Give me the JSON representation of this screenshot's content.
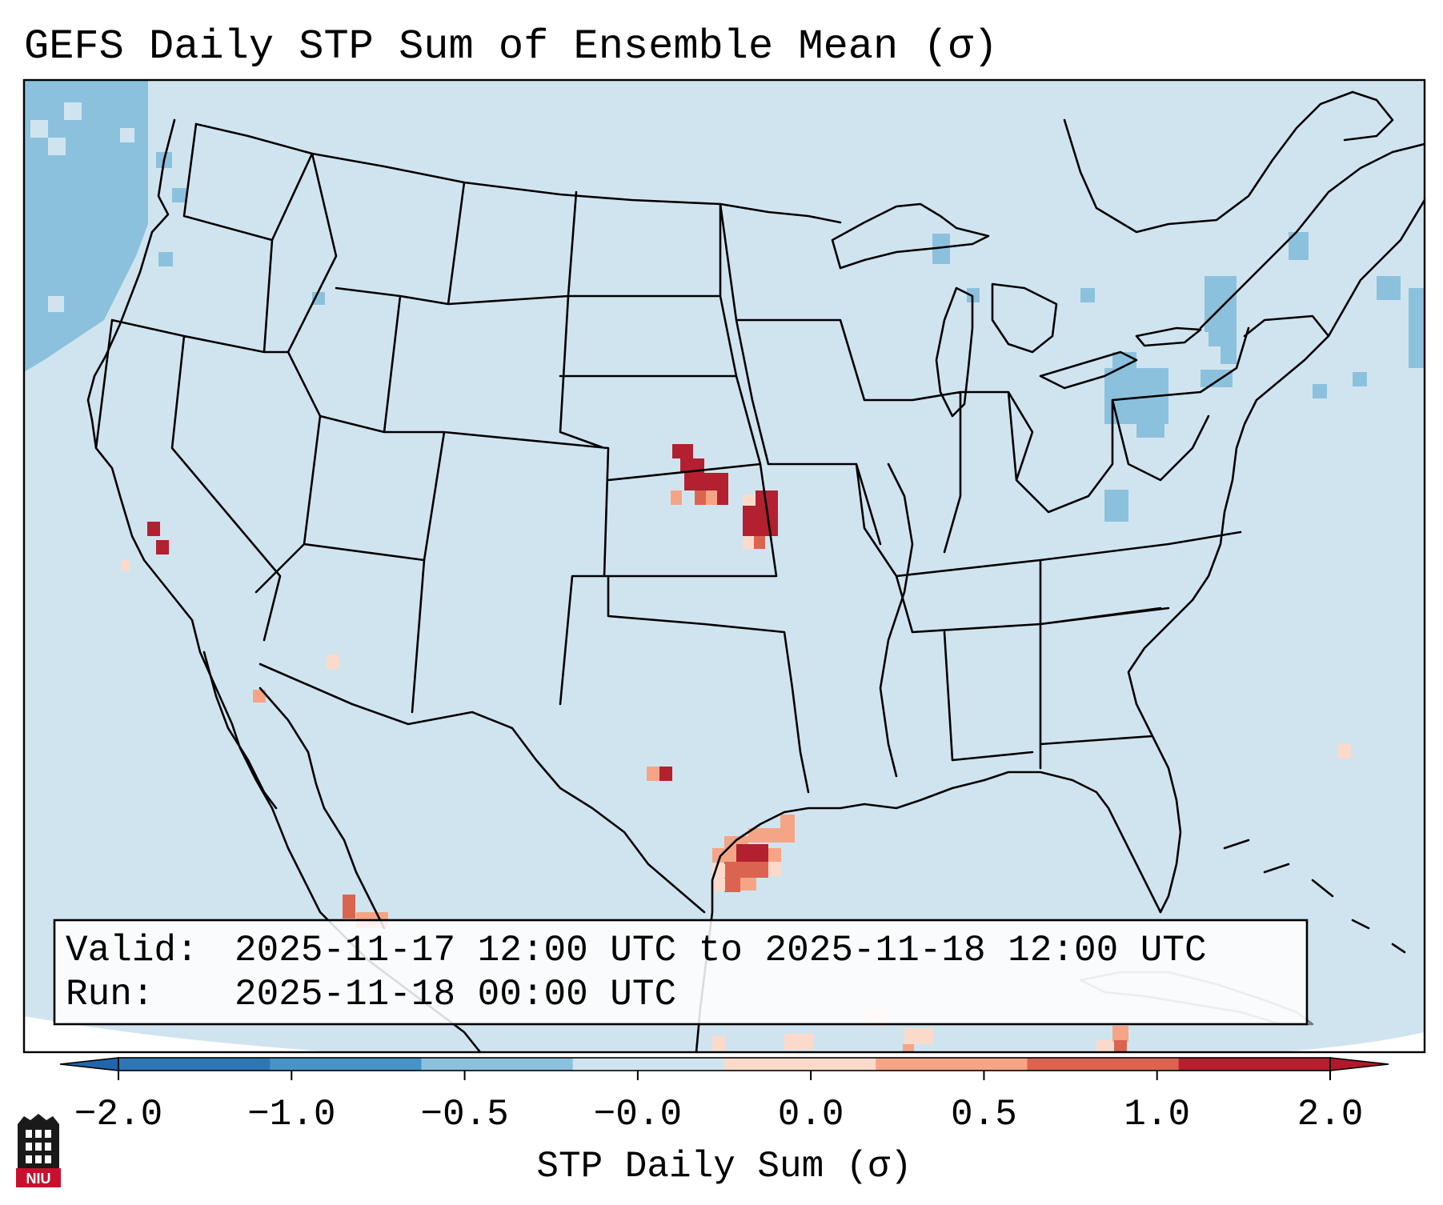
{
  "title": "GEFS Daily STP Sum of Ensemble Mean (σ)",
  "info_box": {
    "valid_label": "Valid:",
    "valid_value": "2025-11-17 12:00 UTC to 2025-11-18 12:00 UTC",
    "run_label": "Run:",
    "run_value": "2025-11-18 00:00 UTC"
  },
  "colorbar": {
    "label": "STP Daily Sum (σ)",
    "ticks": [
      "−2.0",
      "−1.0",
      "−0.5",
      "−0.0",
      "0.0",
      "0.5",
      "1.0",
      "2.0"
    ],
    "colors": [
      "#2f76b5",
      "#4694c7",
      "#8cc1dd",
      "#d0e4f0",
      "#fcdacb",
      "#f5a586",
      "#db6451",
      "#b3202f"
    ],
    "under_color": "#2166ac",
    "over_color": "#b2182b",
    "extend": "both"
  },
  "map": {
    "projection": "Lambert Conformal, CONUS",
    "background_color": "#d0e4f0",
    "outside_color": "#ffffff",
    "boundaries": [
      "coastlines",
      "country borders",
      "US state lines"
    ]
  },
  "logo": {
    "text": "NIU",
    "color": "#c8102e"
  }
}
